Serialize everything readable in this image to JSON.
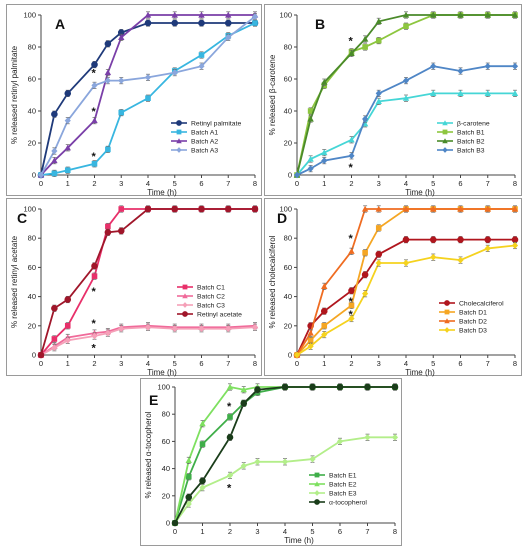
{
  "chart_data": [
    {
      "panel": "A",
      "type": "line",
      "ylabel": "% released retinyl palmitate",
      "xlabel": "Time (h)",
      "xlim": [
        0,
        8
      ],
      "ylim": [
        0,
        100
      ],
      "xticks": [
        0,
        1,
        2,
        3,
        4,
        5,
        6,
        7,
        8
      ],
      "yticks": [
        0,
        20,
        40,
        60,
        80,
        100
      ],
      "grid": false,
      "legend_position": "bottom-right",
      "series": [
        {
          "name": "Retinyl palmitate",
          "color": "#1f3a7a",
          "marker": "circle",
          "x": [
            0,
            0.5,
            1,
            2,
            2.5,
            3,
            4,
            5,
            6,
            7,
            8
          ],
          "y": [
            0,
            38,
            51,
            69,
            82,
            89,
            95,
            95,
            95,
            95,
            95
          ]
        },
        {
          "name": "Batch A1",
          "color": "#38b6e0",
          "marker": "square",
          "x": [
            0,
            0.5,
            1,
            2,
            2.5,
            3,
            4,
            5,
            6,
            7,
            8
          ],
          "y": [
            0,
            1,
            3,
            7,
            16,
            39,
            48,
            65,
            75,
            87,
            95
          ]
        },
        {
          "name": "Batch A2",
          "color": "#7a3fa8",
          "marker": "triangle",
          "x": [
            0,
            0.5,
            1,
            2,
            2.5,
            3,
            4,
            5,
            6,
            7,
            8
          ],
          "y": [
            0,
            9,
            17,
            34,
            64,
            86,
            100,
            100,
            100,
            100,
            100
          ]
        },
        {
          "name": "Batch A3",
          "color": "#8aa6dc",
          "marker": "diamond",
          "x": [
            0,
            0.5,
            1,
            2,
            2.5,
            3,
            4,
            5,
            6,
            7,
            8
          ],
          "y": [
            0,
            15,
            34,
            56,
            59,
            59,
            61,
            64,
            68,
            86,
            99
          ]
        }
      ],
      "annotations": [
        {
          "text": "*",
          "x": 2,
          "y": 64
        },
        {
          "text": "*",
          "x": 2,
          "y": 40
        },
        {
          "text": "*",
          "x": 2,
          "y": 12
        }
      ]
    },
    {
      "panel": "B",
      "type": "line",
      "ylabel": "% released β-carotene",
      "xlabel": "Time (h)",
      "xlim": [
        0,
        8
      ],
      "ylim": [
        0,
        100
      ],
      "xticks": [
        0,
        1,
        2,
        3,
        4,
        5,
        6,
        7,
        8
      ],
      "yticks": [
        0,
        20,
        40,
        60,
        80,
        100
      ],
      "grid": false,
      "legend_position": "bottom-right",
      "series": [
        {
          "name": "β-carotene",
          "color": "#45d6d6",
          "marker": "triangle",
          "x": [
            0,
            0.5,
            1,
            2,
            2.5,
            3,
            4,
            5,
            6,
            7,
            8
          ],
          "y": [
            0,
            10,
            14,
            22,
            32,
            46,
            48,
            51,
            51,
            51,
            51
          ]
        },
        {
          "name": "Batch B1",
          "color": "#8dc63f",
          "marker": "square",
          "x": [
            0,
            0.5,
            1,
            2,
            2.5,
            3,
            4,
            5,
            6,
            7,
            8
          ],
          "y": [
            0,
            40,
            56,
            77,
            80,
            84,
            93,
            100,
            100,
            100,
            100
          ]
        },
        {
          "name": "Batch B2",
          "color": "#4a8a2a",
          "marker": "triangle",
          "x": [
            0,
            0.5,
            1,
            2,
            2.5,
            3,
            4,
            5,
            6,
            7,
            8
          ],
          "y": [
            0,
            35,
            58,
            76,
            85,
            96,
            100,
            100,
            100,
            100,
            100
          ]
        },
        {
          "name": "Batch B3",
          "color": "#4f86c6",
          "marker": "diamond",
          "x": [
            0,
            0.5,
            1,
            2,
            2.5,
            3,
            4,
            5,
            6,
            7,
            8
          ],
          "y": [
            0,
            4,
            9,
            12,
            35,
            51,
            59,
            68,
            65,
            68,
            68
          ]
        }
      ],
      "annotations": [
        {
          "text": "*",
          "x": 2,
          "y": 84
        },
        {
          "text": "*",
          "x": 2,
          "y": 5
        }
      ]
    },
    {
      "panel": "C",
      "type": "line",
      "ylabel": "% released retinyl acetate",
      "xlabel": "Time (h)",
      "xlim": [
        0,
        8
      ],
      "ylim": [
        0,
        100
      ],
      "xticks": [
        0,
        1,
        2,
        3,
        4,
        5,
        6,
        7,
        8
      ],
      "yticks": [
        0,
        20,
        40,
        60,
        80,
        100
      ],
      "grid": false,
      "legend_position": "right",
      "series": [
        {
          "name": "Batch C1",
          "color": "#e8306a",
          "marker": "square",
          "x": [
            0,
            0.5,
            1,
            2,
            2.5,
            3,
            4,
            5,
            6,
            7,
            8
          ],
          "y": [
            0,
            11,
            20,
            54,
            88,
            100,
            100,
            100,
            100,
            100,
            100
          ]
        },
        {
          "name": "Batch C2",
          "color": "#f06a9a",
          "marker": "triangle",
          "x": [
            0,
            0.5,
            1,
            2,
            2.5,
            3,
            4,
            5,
            6,
            7,
            8
          ],
          "y": [
            0,
            6,
            12,
            15,
            16,
            19,
            20,
            19,
            19,
            19,
            20
          ]
        },
        {
          "name": "Batch C3",
          "color": "#f5a0b8",
          "marker": "diamond",
          "x": [
            0,
            0.5,
            1,
            2,
            2.5,
            3,
            4,
            5,
            6,
            7,
            8
          ],
          "y": [
            0,
            5,
            10,
            13,
            15,
            18,
            19,
            18,
            18,
            18,
            19
          ]
        },
        {
          "name": "Retinyl acetate",
          "color": "#a0162a",
          "marker": "circle",
          "x": [
            0,
            0.5,
            1,
            2,
            2.5,
            3,
            4,
            5,
            6,
            7,
            8
          ],
          "y": [
            0,
            32,
            38,
            61,
            84,
            85,
            100,
            100,
            100,
            100,
            100
          ]
        }
      ],
      "annotations": [
        {
          "text": "*",
          "x": 2,
          "y": 44
        },
        {
          "text": "*",
          "x": 2,
          "y": 22
        },
        {
          "text": "*",
          "x": 2,
          "y": 5
        }
      ]
    },
    {
      "panel": "D",
      "type": "line",
      "ylabel": "% released cholecalciferol",
      "xlabel": "Time (h)",
      "xlim": [
        0,
        8
      ],
      "ylim": [
        0,
        100
      ],
      "xticks": [
        0,
        1,
        2,
        3,
        4,
        5,
        6,
        7,
        8
      ],
      "yticks": [
        0,
        20,
        40,
        60,
        80,
        100
      ],
      "grid": false,
      "legend_position": "bottom-right",
      "series": [
        {
          "name": "Cholecalciferol",
          "color": "#b0161e",
          "marker": "circle",
          "x": [
            0,
            0.5,
            1,
            2,
            2.5,
            3,
            4,
            5,
            6,
            7,
            8
          ],
          "y": [
            0,
            20,
            30,
            44,
            55,
            69,
            79,
            79,
            79,
            79,
            79
          ]
        },
        {
          "name": "Batch D1",
          "color": "#f5a623",
          "marker": "square",
          "x": [
            0,
            0.5,
            1,
            2,
            2.5,
            3,
            4,
            5,
            6,
            7,
            8
          ],
          "y": [
            0,
            10,
            20,
            34,
            70,
            87,
            100,
            100,
            100,
            100,
            100
          ]
        },
        {
          "name": "Batch D2",
          "color": "#ef6c21",
          "marker": "triangle",
          "x": [
            0,
            0.5,
            1,
            2,
            2.5,
            3,
            4,
            5,
            6,
            7,
            8
          ],
          "y": [
            0,
            15,
            47,
            71,
            100,
            100,
            100,
            100,
            100,
            100,
            100
          ]
        },
        {
          "name": "Batch D3",
          "color": "#f5d21e",
          "marker": "diamond",
          "x": [
            0,
            0.5,
            1,
            2,
            2.5,
            3,
            4,
            5,
            6,
            7,
            8
          ],
          "y": [
            0,
            6,
            14,
            25,
            42,
            63,
            63,
            67,
            65,
            73,
            75
          ]
        }
      ],
      "annotations": [
        {
          "text": "*",
          "x": 2,
          "y": 80
        },
        {
          "text": "*",
          "x": 2,
          "y": 37
        },
        {
          "text": "*",
          "x": 2,
          "y": 28
        }
      ]
    },
    {
      "panel": "E",
      "type": "line",
      "ylabel": "% released α-tocopherol",
      "xlabel": "Time (h)",
      "xlim": [
        0,
        8
      ],
      "ylim": [
        0,
        100
      ],
      "xticks": [
        0,
        1,
        2,
        3,
        4,
        5,
        6,
        7,
        8
      ],
      "yticks": [
        0,
        20,
        40,
        60,
        80,
        100
      ],
      "grid": false,
      "legend_position": "bottom-right",
      "series": [
        {
          "name": "Batch E1",
          "color": "#3fae49",
          "marker": "square",
          "x": [
            0,
            0.5,
            1,
            2,
            2.5,
            3,
            4,
            5,
            6,
            7,
            8
          ],
          "y": [
            0,
            34,
            58,
            78,
            88,
            96,
            100,
            100,
            100,
            100,
            100
          ]
        },
        {
          "name": "Batch E2",
          "color": "#7ee060",
          "marker": "triangle",
          "x": [
            0,
            0.5,
            1,
            2,
            2.5,
            3,
            4,
            5,
            6,
            7,
            8
          ],
          "y": [
            0,
            46,
            73,
            100,
            98,
            100,
            100,
            100,
            100,
            100,
            100
          ]
        },
        {
          "name": "Batch E3",
          "color": "#b3ee8a",
          "marker": "diamond",
          "x": [
            0,
            0.5,
            1,
            2,
            2.5,
            3,
            4,
            5,
            6,
            7,
            8
          ],
          "y": [
            0,
            14,
            26,
            35,
            42,
            45,
            45,
            47,
            60,
            63,
            63
          ]
        },
        {
          "name": "α-tocopherol",
          "color": "#1a3d1a",
          "marker": "circle",
          "x": [
            0,
            0.5,
            1,
            2,
            2.5,
            3,
            4,
            5,
            6,
            7,
            8
          ],
          "y": [
            0,
            19,
            31,
            63,
            88,
            98,
            100,
            100,
            100,
            100,
            100
          ]
        }
      ],
      "annotations": [
        {
          "text": "*",
          "x": 2,
          "y": 108
        },
        {
          "text": "*",
          "x": 2,
          "y": 86
        },
        {
          "text": "*",
          "x": 2,
          "y": 26
        }
      ]
    }
  ]
}
